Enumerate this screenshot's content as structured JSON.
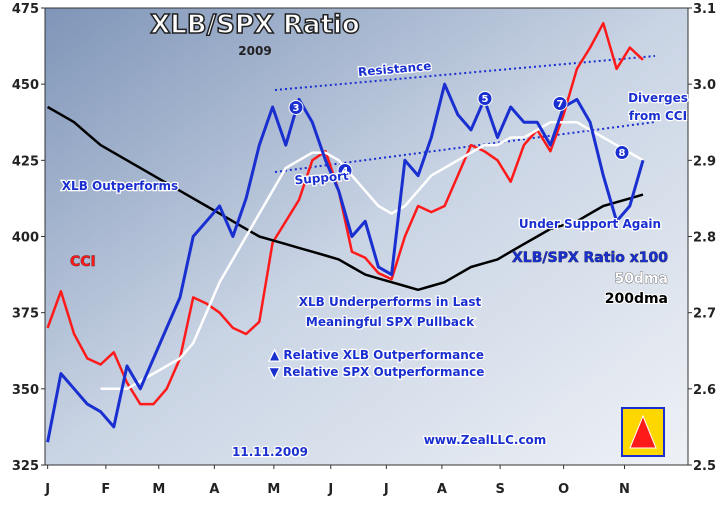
{
  "chart_data": {
    "type": "line",
    "title": "XLB/SPX Ratio",
    "subtitle": "2009",
    "xlim": [
      -0.2,
      48.4
    ],
    "xticks": [
      {
        "value": 0,
        "label": "J"
      },
      {
        "value": 4.4,
        "label": "F"
      },
      {
        "value": 8.4,
        "label": "M"
      },
      {
        "value": 12.6,
        "label": "A"
      },
      {
        "value": 17.1,
        "label": "M"
      },
      {
        "value": 21.4,
        "label": "J"
      },
      {
        "value": 25.6,
        "label": "J"
      },
      {
        "value": 29.8,
        "label": "A"
      },
      {
        "value": 34.2,
        "label": "S"
      },
      {
        "value": 39,
        "label": "O"
      },
      {
        "value": 43.6,
        "label": "N"
      }
    ],
    "ylim": [
      325,
      475
    ],
    "yticks": [
      325,
      350,
      375,
      400,
      425,
      450,
      475
    ],
    "y2lim": [
      2.5,
      3.1
    ],
    "y2ticks": [
      2.5,
      2.6,
      2.7,
      2.8,
      2.9,
      {
        "value": 3,
        "label": "3.0"
      },
      3.1
    ],
    "series": [
      {
        "name": "CCI",
        "color": "#ff1a1a",
        "values": [
          370,
          382,
          368,
          360,
          358,
          362,
          352,
          345,
          345,
          350,
          360,
          380,
          378,
          375,
          370,
          368,
          372,
          398,
          405,
          412,
          425,
          428,
          415,
          395,
          393,
          388,
          386,
          400,
          410,
          408,
          410,
          420,
          430,
          428,
          425,
          418,
          430,
          435,
          428,
          440,
          455,
          462,
          470,
          455,
          462,
          458
        ]
      },
      {
        "name": "200dma",
        "color": "#000000",
        "axis": "y2",
        "values": [
          2.97,
          2.96,
          2.95,
          2.935,
          2.92,
          2.91,
          2.9,
          2.89,
          2.88,
          2.87,
          2.86,
          2.85,
          2.84,
          2.83,
          2.82,
          2.81,
          2.8,
          2.795,
          2.79,
          2.785,
          2.78,
          2.775,
          2.77,
          2.76,
          2.75,
          2.745,
          2.74,
          2.735,
          2.73,
          2.735,
          2.74,
          2.75,
          2.76,
          2.765,
          2.77,
          2.78,
          2.79,
          2.8,
          2.81,
          2.815,
          2.82,
          2.83,
          2.84,
          2.845,
          2.85,
          2.855
        ]
      },
      {
        "name": "50dma",
        "color": "#ffffff",
        "axis": "y2",
        "values": [
          null,
          null,
          null,
          null,
          2.6,
          2.6,
          2.6,
          2.61,
          2.62,
          2.63,
          2.64,
          2.66,
          2.7,
          2.74,
          2.77,
          2.8,
          2.83,
          2.86,
          2.89,
          2.9,
          2.91,
          2.91,
          2.9,
          2.88,
          2.86,
          2.84,
          2.83,
          2.84,
          2.86,
          2.88,
          2.89,
          2.9,
          2.91,
          2.92,
          2.92,
          2.93,
          2.93,
          2.94,
          2.95,
          2.95,
          2.95,
          2.94,
          2.93,
          2.92,
          2.91,
          2.9
        ]
      },
      {
        "name": "XLB/SPX Ratio x100",
        "color": "#1a2fd0",
        "axis": "y2",
        "values": [
          2.53,
          2.62,
          2.6,
          2.58,
          2.57,
          2.55,
          2.63,
          2.6,
          2.64,
          2.68,
          2.72,
          2.8,
          2.82,
          2.84,
          2.8,
          2.85,
          2.92,
          2.97,
          2.92,
          2.98,
          2.95,
          2.9,
          2.86,
          2.8,
          2.82,
          2.76,
          2.75,
          2.9,
          2.88,
          2.93,
          3.0,
          2.96,
          2.94,
          2.98,
          2.93,
          2.97,
          2.95,
          2.95,
          2.92,
          2.97,
          2.98,
          2.95,
          2.88,
          2.82,
          2.84,
          2.9
        ]
      }
    ],
    "annotations": [
      "Resistance",
      "Support",
      "XLB Outperforms",
      "XLB Underperforms in Last",
      "Meaningful SPX Pullback",
      "Under Support Again",
      "Diverges",
      "from CCI",
      "▲ Relative XLB Outperformance",
      "▼ Relative SPX Outperformance",
      "www.ZealLLC.com",
      "11.11.2009",
      "3",
      "4",
      "5",
      "7",
      "8"
    ]
  }
}
